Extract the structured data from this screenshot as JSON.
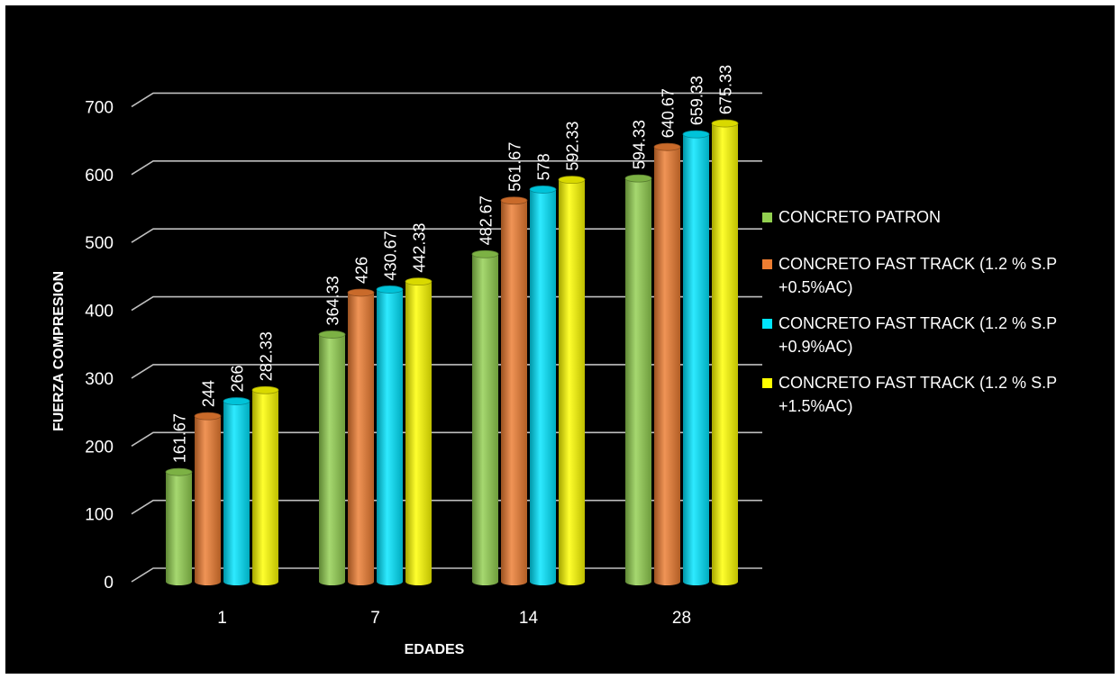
{
  "chart_data": {
    "type": "bar",
    "style": "3d-cylinder",
    "title": "",
    "xlabel": "EDADES",
    "ylabel": "FUERZA  COMPRESION",
    "categories": [
      "1",
      "7",
      "14",
      "28"
    ],
    "ylim": [
      0,
      700
    ],
    "yticks": [
      "0",
      "100",
      "200",
      "300",
      "400",
      "500",
      "600",
      "700"
    ],
    "grid": true,
    "legend_position": "right",
    "series": [
      {
        "name": "CONCRETO PATRON",
        "color": "#92d050",
        "values": [
          161.67,
          364.33,
          482.67,
          594.33
        ],
        "labels": [
          "161.67",
          "364.33",
          "482.67",
          "594.33"
        ]
      },
      {
        "name": "CONCRETO FAST TRACK (1.2 % S.P +0.5%AC)",
        "color": "#ed7d31",
        "values": [
          244,
          426,
          561.67,
          640.67
        ],
        "labels": [
          "244",
          "426",
          "561.67",
          "640.67"
        ]
      },
      {
        "name": "CONCRETO FAST TRACK (1.2 % S.P +0.9%AC)",
        "color": "#00e5ff",
        "values": [
          266,
          430.67,
          578,
          659.33
        ],
        "labels": [
          "266",
          "430.67",
          "578",
          "659.33"
        ]
      },
      {
        "name": "CONCRETO FAST TRACK (1.2 % S.P +1.5%AC)",
        "color": "#ffff00",
        "values": [
          282.33,
          442.33,
          592.33,
          675.33
        ],
        "labels": [
          "282.33",
          "442.33",
          "592.33",
          "675.33"
        ]
      }
    ]
  }
}
